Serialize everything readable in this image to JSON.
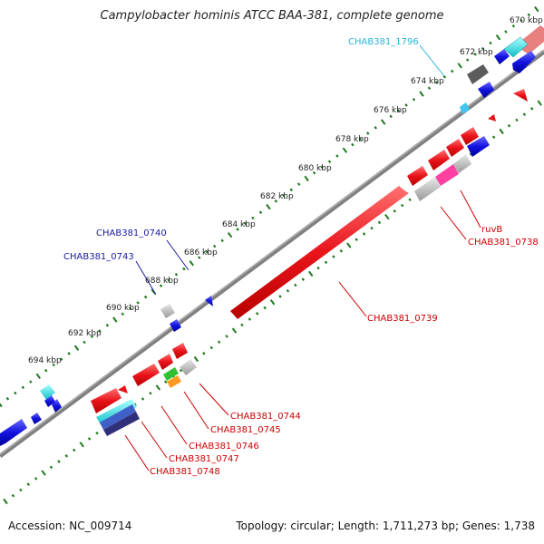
{
  "title": "Campylobacter hominis ATCC BAA-381, complete genome",
  "footer": {
    "accession": "Accession: NC_009714",
    "topology": "Topology: circular; Length: 1,711,273 bp; Genes: 1,738"
  },
  "colors": {
    "backbone": "#808080",
    "forward_gene": "#e8141a",
    "reverse_gene": "#1616d8",
    "gray_feature": "#b8b8b8",
    "tick_green": "#1e7a1e",
    "label_red": "#cc0000",
    "label_blue": "#1a1aa0",
    "label_cyan": "#28b4d8"
  },
  "tick_labels": [
    "670 kbp",
    "672 kbp",
    "674 kbp",
    "676 kbp",
    "678 kbp",
    "680 kbp",
    "682 kbp",
    "684 kbp",
    "686 kbp",
    "688 kbp",
    "690 kbp",
    "692 kbp",
    "694 kbp"
  ],
  "feature_labels": [
    "CHAB381_1796",
    "CHAB381_0740",
    "CHAB381_0743",
    "CHAB381_0739",
    "ruvB",
    "CHAB381_0738",
    "CHAB381_0744",
    "CHAB381_0745",
    "CHAB381_0746",
    "CHAB381_0747",
    "CHAB381_0748"
  ]
}
